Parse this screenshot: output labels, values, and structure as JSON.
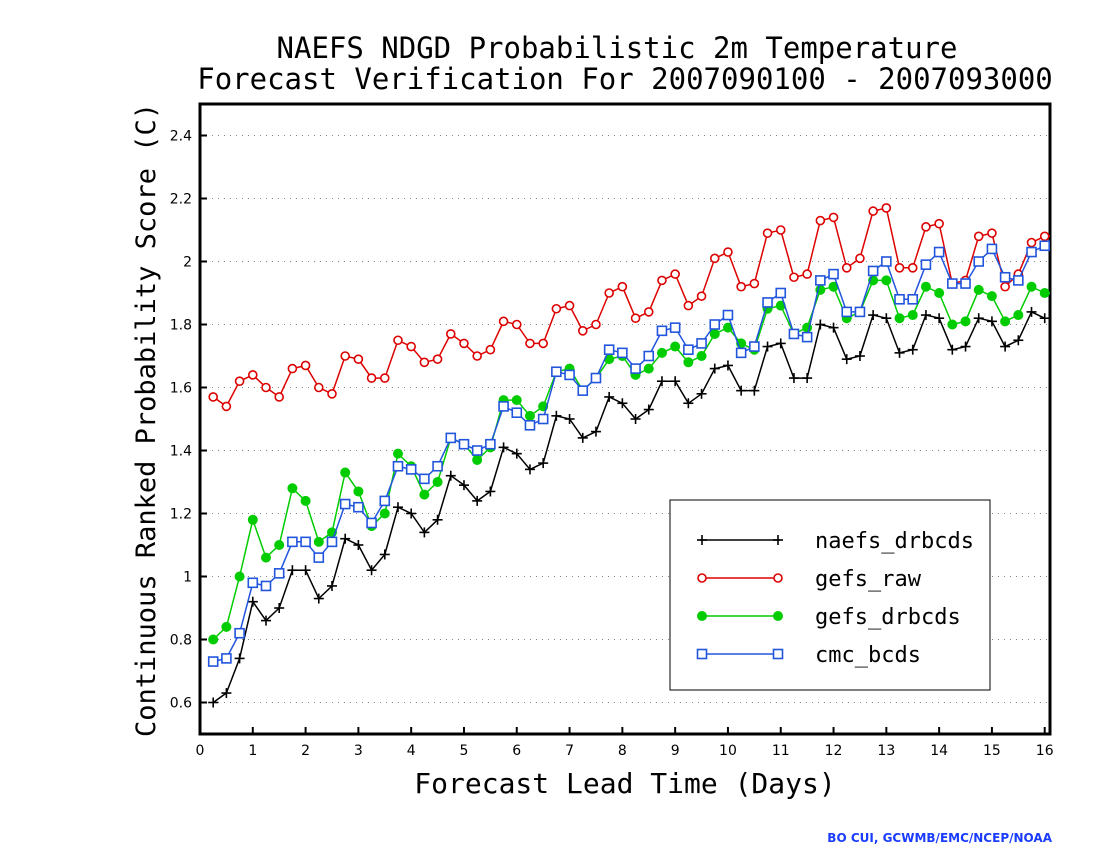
{
  "chart_data": {
    "type": "line",
    "title_line1": "NAEFS NDGD Probabilistic 2m Temperature",
    "title_line2": "Forecast Verification For 2007090100 - 2007093000",
    "xlabel": "Forecast Lead Time (Days)",
    "ylabel": "Continuous Ranked Probability Score (C)",
    "xlim": [
      0,
      16.1
    ],
    "ylim": [
      0.5,
      2.5
    ],
    "xticks": [
      "0",
      "1",
      "2",
      "3",
      "4",
      "5",
      "6",
      "7",
      "8",
      "9",
      "10",
      "11",
      "12",
      "13",
      "14",
      "15",
      "16"
    ],
    "yticks": [
      "0.6",
      "0.8",
      "1",
      "1.2",
      "1.4",
      "1.6",
      "1.8",
      "2",
      "2.2",
      "2.4"
    ],
    "grid": "horizontal dotted",
    "legend_position": "lower-right",
    "x": [
      0.25,
      0.5,
      0.75,
      1.0,
      1.25,
      1.5,
      1.75,
      2.0,
      2.25,
      2.5,
      2.75,
      3.0,
      3.25,
      3.5,
      3.75,
      4.0,
      4.25,
      4.5,
      4.75,
      5.0,
      5.25,
      5.5,
      5.75,
      6.0,
      6.25,
      6.5,
      6.75,
      7.0,
      7.25,
      7.5,
      7.75,
      8.0,
      8.25,
      8.5,
      8.75,
      9.0,
      9.25,
      9.5,
      9.75,
      10.0,
      10.25,
      10.5,
      10.75,
      11.0,
      11.25,
      11.5,
      11.75,
      12.0,
      12.25,
      12.5,
      12.75,
      13.0,
      13.25,
      13.5,
      13.75,
      14.0,
      14.25,
      14.5,
      14.75,
      15.0,
      15.25,
      15.5,
      15.75,
      16.0,
      16.1
    ],
    "series": [
      {
        "name": "naefs_drbcds",
        "color": "#000000",
        "marker": "plus",
        "values": [
          0.6,
          0.63,
          0.74,
          0.92,
          0.86,
          0.9,
          1.02,
          1.02,
          0.93,
          0.97,
          1.12,
          1.1,
          1.02,
          1.07,
          1.22,
          1.2,
          1.14,
          1.18,
          1.32,
          1.29,
          1.24,
          1.27,
          1.41,
          1.39,
          1.34,
          1.36,
          1.51,
          1.5,
          1.44,
          1.46,
          1.57,
          1.55,
          1.5,
          1.53,
          1.62,
          1.62,
          1.55,
          1.58,
          1.66,
          1.67,
          1.59,
          1.59,
          1.73,
          1.74,
          1.63,
          1.63,
          1.8,
          1.79,
          1.69,
          1.7,
          1.83,
          1.82,
          1.71,
          1.72,
          1.83,
          1.82,
          1.72,
          1.73,
          1.82,
          1.81,
          1.73,
          1.75,
          1.84,
          1.82,
          1.82
        ]
      },
      {
        "name": "gefs_raw",
        "color": "#dd0000",
        "marker": "circle",
        "values": [
          1.57,
          1.54,
          1.62,
          1.64,
          1.6,
          1.57,
          1.66,
          1.67,
          1.6,
          1.58,
          1.7,
          1.69,
          1.63,
          1.63,
          1.75,
          1.73,
          1.68,
          1.69,
          1.77,
          1.74,
          1.7,
          1.72,
          1.81,
          1.8,
          1.74,
          1.74,
          1.85,
          1.86,
          1.78,
          1.8,
          1.9,
          1.92,
          1.82,
          1.84,
          1.94,
          1.96,
          1.86,
          1.89,
          2.01,
          2.03,
          1.92,
          1.93,
          2.09,
          2.1,
          1.95,
          1.96,
          2.13,
          2.14,
          1.98,
          2.01,
          2.16,
          2.17,
          1.98,
          1.98,
          2.11,
          2.12,
          1.93,
          1.94,
          2.08,
          2.09,
          1.92,
          1.96,
          2.06,
          2.08,
          2.08
        ]
      },
      {
        "name": "gefs_drbcds",
        "color": "#00cc00",
        "marker": "dot",
        "values": [
          0.8,
          0.84,
          1.0,
          1.18,
          1.06,
          1.1,
          1.28,
          1.24,
          1.11,
          1.14,
          1.33,
          1.27,
          1.16,
          1.2,
          1.39,
          1.35,
          1.26,
          1.3,
          1.44,
          1.42,
          1.37,
          1.41,
          1.56,
          1.56,
          1.51,
          1.54,
          1.65,
          1.66,
          1.59,
          1.63,
          1.69,
          1.7,
          1.64,
          1.66,
          1.71,
          1.73,
          1.68,
          1.7,
          1.77,
          1.79,
          1.74,
          1.72,
          1.85,
          1.86,
          1.77,
          1.79,
          1.91,
          1.92,
          1.82,
          1.84,
          1.94,
          1.94,
          1.82,
          1.83,
          1.92,
          1.9,
          1.8,
          1.81,
          1.91,
          1.89,
          1.81,
          1.83,
          1.92,
          1.9,
          1.9
        ]
      },
      {
        "name": "cmc_bcds",
        "color": "#2255dd",
        "marker": "square",
        "values": [
          0.73,
          0.74,
          0.82,
          0.98,
          0.97,
          1.01,
          1.11,
          1.11,
          1.06,
          1.11,
          1.23,
          1.22,
          1.17,
          1.24,
          1.35,
          1.34,
          1.31,
          1.35,
          1.44,
          1.42,
          1.4,
          1.42,
          1.54,
          1.52,
          1.48,
          1.5,
          1.65,
          1.64,
          1.59,
          1.63,
          1.72,
          1.71,
          1.66,
          1.7,
          1.78,
          1.79,
          1.72,
          1.74,
          1.8,
          1.83,
          1.71,
          1.73,
          1.87,
          1.9,
          1.77,
          1.76,
          1.94,
          1.96,
          1.84,
          1.84,
          1.97,
          2.0,
          1.88,
          1.88,
          1.99,
          2.03,
          1.93,
          1.93,
          2.0,
          2.04,
          1.95,
          1.94,
          2.03,
          2.05,
          2.05
        ]
      }
    ]
  },
  "credit": "BO CUI, GCWMB/EMC/NCEP/NOAA",
  "credit_color": "#1a3cff"
}
